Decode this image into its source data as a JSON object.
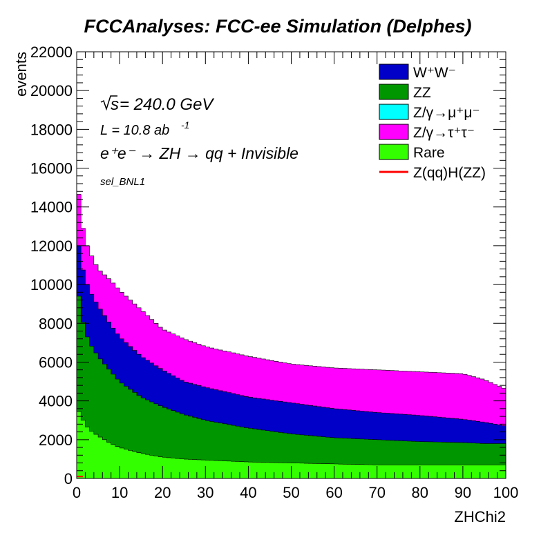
{
  "title": "FCCAnalyses: FCC-ee Simulation (Delphes)",
  "annotations": {
    "sqrt_s": "s",
    "energy": " = 240.0 GeV",
    "lumi": "L = 10.8 ab",
    "lumi_exp": "-1",
    "process": "e⁺e⁻ → ZH → qq + Invisible",
    "selection": "sel_BNL1"
  },
  "colors": {
    "WW": "#0000c8",
    "ZZ": "#009600",
    "Zmumu": "#00ffff",
    "Ztautau": "#ff00ff",
    "Rare": "#33ff00",
    "signal": "#ff0000"
  },
  "chart_data": {
    "type": "area",
    "stacked": true,
    "binning": {
      "nbins": 100,
      "xmin": 0,
      "xmax": 100
    },
    "title": "FCCAnalyses: FCC-ee Simulation (Delphes)",
    "xlabel": "ZHChi2",
    "ylabel": "events",
    "xlim": [
      0,
      100
    ],
    "ylim": [
      0,
      22000
    ],
    "xticks": [
      "0",
      "10",
      "20",
      "30",
      "40",
      "50",
      "60",
      "70",
      "80",
      "90",
      "100"
    ],
    "yticks": [
      "0",
      "2000",
      "4000",
      "6000",
      "8000",
      "10000",
      "12000",
      "14000",
      "16000",
      "18000",
      "20000",
      "22000"
    ],
    "legend_position": "top-right",
    "legend": [
      {
        "key": "WW",
        "label": "W⁺W⁻",
        "style": "fill"
      },
      {
        "key": "ZZ",
        "label": "ZZ",
        "style": "fill"
      },
      {
        "key": "Zmumu",
        "label": "Z/γ→μ⁺μ⁻",
        "style": "fill"
      },
      {
        "key": "Ztautau",
        "label": "Z/γ→τ⁺τ⁻",
        "style": "fill"
      },
      {
        "key": "Rare",
        "label": "Rare",
        "style": "fill"
      },
      {
        "key": "signal",
        "label": "Z(qq)H(ZZ)",
        "style": "line"
      }
    ],
    "cumulative_edges": [
      {
        "x": 0,
        "rare": 3700,
        "zz": 10300,
        "ww": 12800,
        "total": 15800
      },
      {
        "x": 1,
        "rare": 3200,
        "zz": 8500,
        "ww": 11200,
        "total": 13500
      },
      {
        "x": 2,
        "rare": 2800,
        "zz": 7600,
        "ww": 10300,
        "total": 12300
      },
      {
        "x": 3,
        "rare": 2500,
        "zz": 7000,
        "ww": 9700,
        "total": 11700
      },
      {
        "x": 5,
        "rare": 2200,
        "zz": 6300,
        "ww": 8900,
        "total": 10800
      },
      {
        "x": 8,
        "rare": 1800,
        "zz": 5500,
        "ww": 7900,
        "total": 10200
      },
      {
        "x": 10,
        "rare": 1600,
        "zz": 5000,
        "ww": 7300,
        "total": 9700
      },
      {
        "x": 15,
        "rare": 1300,
        "zz": 4200,
        "ww": 6300,
        "total": 8700
      },
      {
        "x": 20,
        "rare": 1100,
        "zz": 3700,
        "ww": 5600,
        "total": 7700
      },
      {
        "x": 25,
        "rare": 1000,
        "zz": 3300,
        "ww": 5000,
        "total": 7200
      },
      {
        "x": 30,
        "rare": 950,
        "zz": 3000,
        "ww": 4700,
        "total": 6800
      },
      {
        "x": 40,
        "rare": 850,
        "zz": 2600,
        "ww": 4200,
        "total": 6300
      },
      {
        "x": 50,
        "rare": 800,
        "zz": 2300,
        "ww": 3900,
        "total": 5900
      },
      {
        "x": 60,
        "rare": 750,
        "zz": 2100,
        "ww": 3600,
        "total": 5700
      },
      {
        "x": 70,
        "rare": 700,
        "zz": 2000,
        "ww": 3400,
        "total": 5600
      },
      {
        "x": 80,
        "rare": 700,
        "zz": 1900,
        "ww": 3250,
        "total": 5500
      },
      {
        "x": 90,
        "rare": 700,
        "zz": 1850,
        "ww": 3050,
        "total": 5400
      },
      {
        "x": 95,
        "rare": 700,
        "zz": 1800,
        "ww": 2900,
        "total": 5100
      },
      {
        "x": 100,
        "rare": 700,
        "zz": 1800,
        "ww": 2700,
        "total": 4600
      }
    ],
    "zmumu_cumulative": 0,
    "signal_values": {
      "x0": 0,
      "value": 100
    }
  }
}
